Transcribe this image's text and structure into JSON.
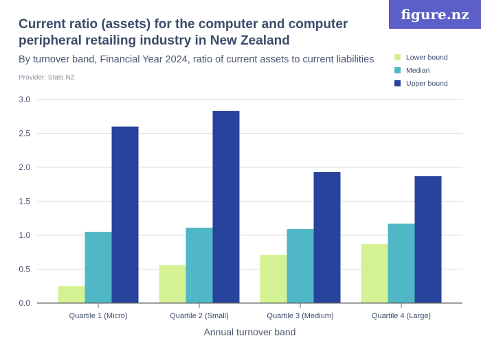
{
  "header": {
    "title": "Current ratio (assets) for the computer and computer peripheral retailing industry in New Zealand",
    "subtitle": "By turnover band, Financial Year 2024, ratio of current assets to current liabilities",
    "provider": "Provider: Stats NZ",
    "logo": "figure.nz"
  },
  "chart_data": {
    "type": "bar",
    "title": "Current ratio (assets) for the computer and computer peripheral retailing industry in New Zealand",
    "xlabel": "Annual turnover band",
    "ylabel": "",
    "ylim": [
      0,
      3
    ],
    "yticks": [
      "0.0",
      "0.5",
      "1.0",
      "1.5",
      "2.0",
      "2.5",
      "3.0"
    ],
    "grid": true,
    "legend_position": "top-right",
    "categories": [
      "Quartile 1 (Micro)",
      "Quartile 2 (Small)",
      "Quartile 3 (Medium)",
      "Quartile 4 (Large)"
    ],
    "series": [
      {
        "name": "Lower bound",
        "color": "#d4f294",
        "values": [
          0.25,
          0.56,
          0.71,
          0.87
        ]
      },
      {
        "name": "Median",
        "color": "#4fb7c5",
        "values": [
          1.05,
          1.11,
          1.09,
          1.17
        ]
      },
      {
        "name": "Upper bound",
        "color": "#27439c",
        "values": [
          2.6,
          2.83,
          1.93,
          1.87
        ]
      }
    ]
  }
}
